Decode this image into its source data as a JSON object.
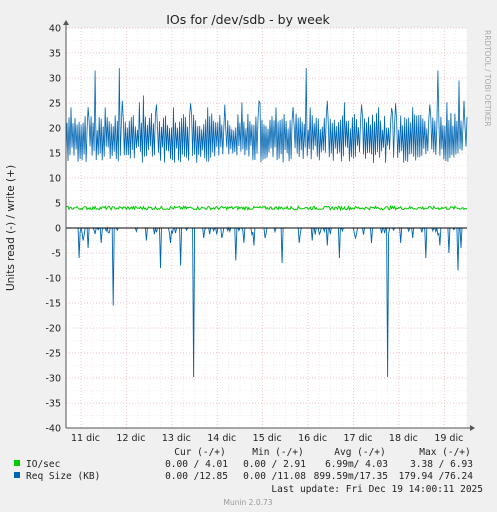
{
  "chart_data": {
    "type": "line",
    "title": "IOs for /dev/sdb - by week",
    "ylabel": "Units read (-) / write (+)",
    "watermark": "RRDTOOL / TOBI OETIKER",
    "ylim": [
      -40,
      40
    ],
    "yticks": [
      40,
      35,
      30,
      25,
      20,
      15,
      10,
      5,
      0,
      -5,
      -10,
      -15,
      -20,
      -25,
      -30,
      -35,
      -40
    ],
    "x_tick_labels": [
      "11 dic",
      "12 dic",
      "13 dic",
      "14 dic",
      "15 dic",
      "16 dic",
      "17 dic",
      "18 dic",
      "19 dic"
    ],
    "grid": true,
    "series": [
      {
        "name": "IO/sec",
        "color": "#00cc00",
        "write_level": 4.0,
        "read_level": 0.0
      },
      {
        "name": "Req Size (KB)",
        "color": "#0066b3",
        "write_band": [
          13,
          23
        ],
        "write_spikes": [
          {
            "day": 11.32,
            "value": 31.5
          },
          {
            "day": 11.85,
            "value": 32.0
          },
          {
            "day": 12.38,
            "value": 26.5
          },
          {
            "day": 14.95,
            "value": 25.0
          },
          {
            "day": 15.95,
            "value": 32.0
          },
          {
            "day": 17.85,
            "value": 24.0
          },
          {
            "day": 18.85,
            "value": 31.5
          },
          {
            "day": 19.33,
            "value": 29.5
          }
        ],
        "read_spikes": [
          {
            "day": 10.95,
            "value": -6.0
          },
          {
            "day": 11.05,
            "value": -2.5
          },
          {
            "day": 11.15,
            "value": -4.0
          },
          {
            "day": 11.45,
            "value": -3.0
          },
          {
            "day": 11.7,
            "value": -15.5
          },
          {
            "day": 12.45,
            "value": -2.5
          },
          {
            "day": 12.75,
            "value": -8.0
          },
          {
            "day": 12.98,
            "value": -3.0
          },
          {
            "day": 13.2,
            "value": -7.5
          },
          {
            "day": 13.48,
            "value": -29.8
          },
          {
            "day": 13.7,
            "value": -2.0
          },
          {
            "day": 14.1,
            "value": -2.0
          },
          {
            "day": 14.42,
            "value": -6.5
          },
          {
            "day": 14.58,
            "value": -3.0
          },
          {
            "day": 14.8,
            "value": -3.5
          },
          {
            "day": 15.05,
            "value": -2.0
          },
          {
            "day": 15.42,
            "value": -7.0
          },
          {
            "day": 15.8,
            "value": -3.0
          },
          {
            "day": 16.1,
            "value": -2.5
          },
          {
            "day": 16.42,
            "value": -3.5
          },
          {
            "day": 16.68,
            "value": -6.0
          },
          {
            "day": 17.05,
            "value": -2.0
          },
          {
            "day": 17.4,
            "value": -3.0
          },
          {
            "day": 17.75,
            "value": -29.8
          },
          {
            "day": 18.05,
            "value": -3.0
          },
          {
            "day": 18.3,
            "value": -2.0
          },
          {
            "day": 18.6,
            "value": -6.0
          },
          {
            "day": 18.9,
            "value": -3.5
          },
          {
            "day": 19.1,
            "value": -5.0
          },
          {
            "day": 19.3,
            "value": -8.5
          },
          {
            "day": 19.36,
            "value": -4.0
          }
        ]
      }
    ],
    "legend": {
      "headers": [
        "Cur (-/+)",
        "Min (-/+)",
        "Avg (-/+)",
        "Max (-/+)"
      ],
      "rows": [
        {
          "name": "IO/sec",
          "color": "#00cc00",
          "cur": "0.00 / 4.01",
          "min": "0.00 / 2.91",
          "avg": "6.99m/ 4.03",
          "max": "3.38 / 6.93"
        },
        {
          "name": "Req Size (KB)",
          "color": "#0066b3",
          "cur": "0.00 /12.85",
          "min": "0.00 /11.08",
          "avg": "899.59m/17.35",
          "max": "179.94 /76.24"
        }
      ]
    },
    "last_update": "Last update: Fri Dec 19 14:00:11 2025",
    "footer": "Munin 2.0.73"
  }
}
